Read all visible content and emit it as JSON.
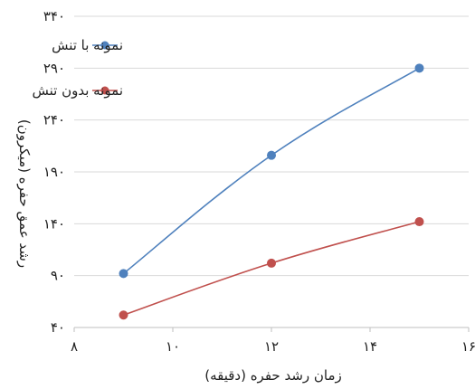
{
  "chart_data": {
    "type": "line",
    "xlabel": "زمان رشد حفره (دقیقه)",
    "ylabel": "رشد عمق حفره (میکرون)",
    "xlim": [
      8,
      16
    ],
    "ylim": [
      40,
      340
    ],
    "x_ticks": [
      8,
      10,
      12,
      14,
      16
    ],
    "y_ticks": [
      40,
      90,
      140,
      190,
      240,
      290,
      340
    ],
    "x_tick_labels": [
      "۸",
      "۱۰",
      "۱۲",
      "۱۴",
      "۱۶"
    ],
    "y_tick_labels": [
      "۴۰",
      "۹۰",
      "۱۴۰",
      "۱۹۰",
      "۲۴۰",
      "۲۹۰",
      "۳۴۰"
    ],
    "grid": "horizontal",
    "legend_position": "top-left",
    "series": [
      {
        "name": "نمونه با تنش",
        "color": "#4f81bd",
        "x": [
          9,
          12,
          15
        ],
        "y": [
          92,
          206,
          290
        ]
      },
      {
        "name": "نمونه بدون تنش",
        "color": "#c0504d",
        "x": [
          9,
          12,
          15
        ],
        "y": [
          52,
          102,
          142
        ]
      }
    ]
  }
}
